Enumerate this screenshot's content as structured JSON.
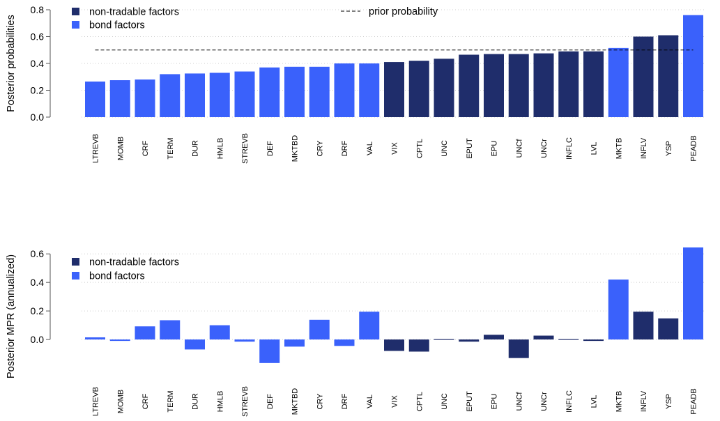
{
  "colors": {
    "non_tradable": "#1f2d6b",
    "bond": "#3a61fb",
    "grid": "#cfcfcf",
    "axis": "#555555"
  },
  "chart_data": [
    {
      "type": "bar",
      "ylabel": "Posterior probabilities",
      "ylim": [
        0,
        0.8
      ],
      "yticks": [
        "0.0",
        "0.2",
        "0.4",
        "0.6",
        "0.8"
      ],
      "grid": true,
      "legend": {
        "position": "top-left",
        "items": [
          {
            "label": "non-tradable factors",
            "color_key": "non_tradable"
          },
          {
            "label": "bond factors",
            "color_key": "bond"
          }
        ]
      },
      "reference_line": {
        "label": "prior probability",
        "value": 0.5,
        "style": "dashed"
      },
      "categories": [
        "LTREVB",
        "MOMB",
        "CRF",
        "TERM",
        "DUR",
        "HMLB",
        "STREVB",
        "DEF",
        "MKTBD",
        "CRY",
        "DRF",
        "VAL",
        "VIX",
        "CPTL",
        "UNC",
        "EPUT",
        "EPU",
        "UNCf",
        "UNCr",
        "INFLC",
        "LVL",
        "MKTB",
        "INFLV",
        "YSP",
        "PEADB"
      ],
      "groups": [
        "bond",
        "bond",
        "bond",
        "bond",
        "bond",
        "bond",
        "bond",
        "bond",
        "bond",
        "bond",
        "bond",
        "bond",
        "non_tradable",
        "non_tradable",
        "non_tradable",
        "non_tradable",
        "non_tradable",
        "non_tradable",
        "non_tradable",
        "non_tradable",
        "non_tradable",
        "bond",
        "non_tradable",
        "non_tradable",
        "bond"
      ],
      "values": [
        0.265,
        0.275,
        0.28,
        0.32,
        0.325,
        0.33,
        0.34,
        0.37,
        0.375,
        0.375,
        0.4,
        0.4,
        0.41,
        0.42,
        0.435,
        0.465,
        0.47,
        0.47,
        0.475,
        0.49,
        0.49,
        0.515,
        0.6,
        0.61,
        0.76
      ]
    },
    {
      "type": "bar",
      "ylabel": "Posterior MPR (annualized)",
      "ylim": [
        -0.2,
        0.65
      ],
      "yticks": [
        "0.0",
        "0.2",
        "0.4",
        "0.6"
      ],
      "grid": true,
      "legend": {
        "position": "top-left",
        "items": [
          {
            "label": "non-tradable factors",
            "color_key": "non_tradable"
          },
          {
            "label": "bond factors",
            "color_key": "bond"
          }
        ]
      },
      "categories": [
        "LTREVB",
        "MOMB",
        "CRF",
        "TERM",
        "DUR",
        "HMLB",
        "STREVB",
        "DEF",
        "MKTBD",
        "CRY",
        "DRF",
        "VAL",
        "VIX",
        "CPTL",
        "UNC",
        "EPUT",
        "EPU",
        "UNCf",
        "UNCr",
        "INFLC",
        "LVL",
        "MKTB",
        "INFLV",
        "YSP",
        "PEADB"
      ],
      "groups": [
        "bond",
        "bond",
        "bond",
        "bond",
        "bond",
        "bond",
        "bond",
        "bond",
        "bond",
        "bond",
        "bond",
        "bond",
        "non_tradable",
        "non_tradable",
        "non_tradable",
        "non_tradable",
        "non_tradable",
        "non_tradable",
        "non_tradable",
        "non_tradable",
        "non_tradable",
        "bond",
        "non_tradable",
        "non_tradable",
        "bond"
      ],
      "values": [
        0.015,
        -0.01,
        0.092,
        0.135,
        -0.07,
        0.1,
        -0.015,
        -0.165,
        -0.05,
        0.138,
        -0.045,
        0.195,
        -0.08,
        -0.085,
        0.0,
        -0.015,
        0.033,
        -0.13,
        0.027,
        0.0,
        -0.01,
        0.42,
        0.195,
        0.148,
        0.645
      ]
    }
  ]
}
